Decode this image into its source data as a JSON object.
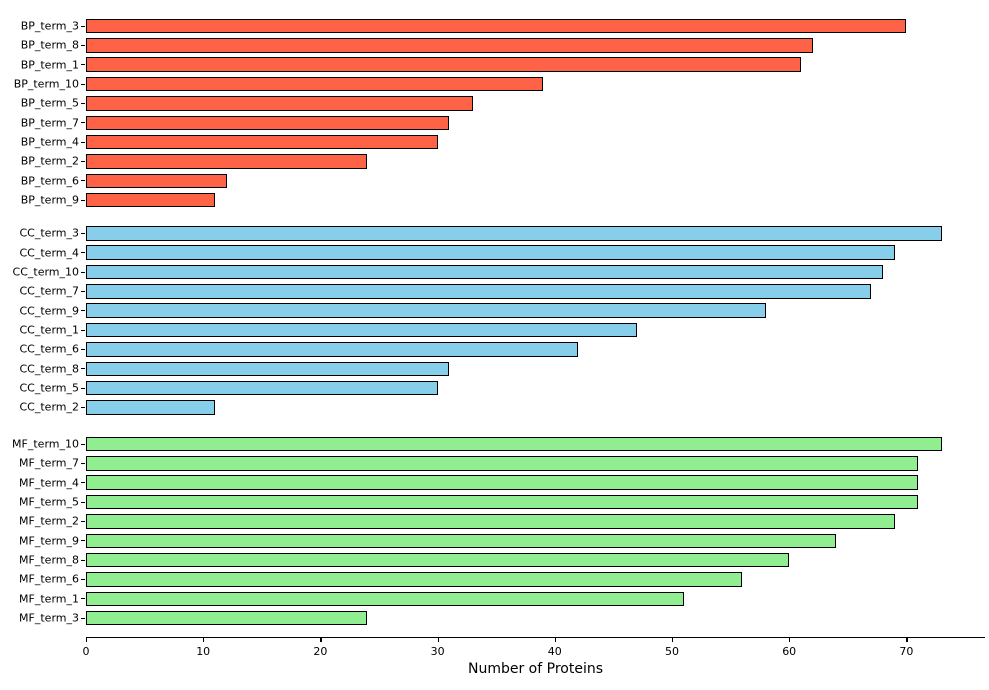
{
  "chart_data": {
    "type": "bar",
    "orientation": "horizontal",
    "title": "",
    "xlabel": "Number of Proteins",
    "ylabel": "",
    "xlim": [
      0,
      77
    ],
    "x_ticks": [
      0,
      10,
      20,
      30,
      40,
      50,
      60,
      70
    ],
    "grid": false,
    "legend": "none",
    "bar_edge_color": "#000000",
    "background_color": "#ffffff",
    "groups": [
      {
        "name": "BP",
        "color": "#FF6347",
        "bars": [
          {
            "label": "BP_term_3",
            "value": 70
          },
          {
            "label": "BP_term_8",
            "value": 62
          },
          {
            "label": "BP_term_1",
            "value": 61
          },
          {
            "label": "BP_term_10",
            "value": 39
          },
          {
            "label": "BP_term_5",
            "value": 33
          },
          {
            "label": "BP_term_7",
            "value": 31
          },
          {
            "label": "BP_term_4",
            "value": 30
          },
          {
            "label": "BP_term_2",
            "value": 24
          },
          {
            "label": "BP_term_6",
            "value": 12
          },
          {
            "label": "BP_term_9",
            "value": 11
          }
        ]
      },
      {
        "name": "CC",
        "color": "#87CEEB",
        "bars": [
          {
            "label": "CC_term_3",
            "value": 73
          },
          {
            "label": "CC_term_4",
            "value": 69
          },
          {
            "label": "CC_term_10",
            "value": 68
          },
          {
            "label": "CC_term_7",
            "value": 67
          },
          {
            "label": "CC_term_9",
            "value": 58
          },
          {
            "label": "CC_term_1",
            "value": 47
          },
          {
            "label": "CC_term_6",
            "value": 42
          },
          {
            "label": "CC_term_8",
            "value": 31
          },
          {
            "label": "CC_term_5",
            "value": 30
          },
          {
            "label": "CC_term_2",
            "value": 11
          }
        ]
      },
      {
        "name": "MF",
        "color": "#90EE90",
        "bars": [
          {
            "label": "MF_term_10",
            "value": 73
          },
          {
            "label": "MF_term_7",
            "value": 71
          },
          {
            "label": "MF_term_4",
            "value": 71
          },
          {
            "label": "MF_term_5",
            "value": 71
          },
          {
            "label": "MF_term_2",
            "value": 69
          },
          {
            "label": "MF_term_9",
            "value": 64
          },
          {
            "label": "MF_term_8",
            "value": 60
          },
          {
            "label": "MF_term_6",
            "value": 56
          },
          {
            "label": "MF_term_1",
            "value": 51
          },
          {
            "label": "MF_term_3",
            "value": 24
          }
        ]
      }
    ]
  }
}
